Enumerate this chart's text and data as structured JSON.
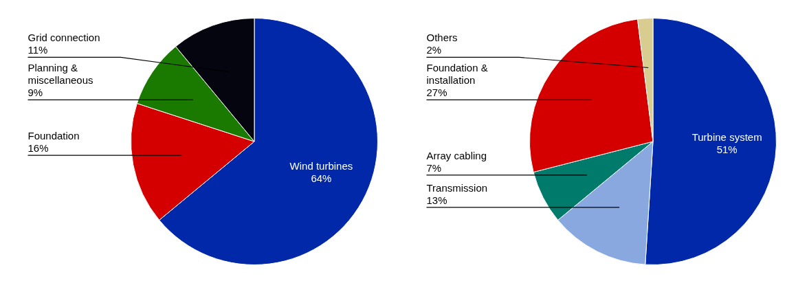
{
  "chart_data": [
    {
      "type": "pie",
      "categories": [
        "Wind turbines",
        "Foundation",
        "Planning & miscellaneous",
        "Grid connection"
      ],
      "values": [
        64,
        16,
        9,
        11
      ],
      "value_labels": [
        "64%",
        "16%",
        "9%",
        "11%"
      ],
      "colors": [
        "#0028a8",
        "#d40000",
        "#1a7a00",
        "#050510"
      ],
      "legend": false
    },
    {
      "type": "pie",
      "categories": [
        "Turbine system",
        "Transmission",
        "Array cabling",
        "Foundation & installation",
        "Others"
      ],
      "values": [
        51,
        13,
        7,
        27,
        2
      ],
      "value_labels": [
        "51%",
        "13%",
        "7%",
        "27%",
        "2%"
      ],
      "colors": [
        "#0028a8",
        "#8aa8e0",
        "#007a6a",
        "#d40000",
        "#d8cc90"
      ],
      "legend": false
    }
  ]
}
